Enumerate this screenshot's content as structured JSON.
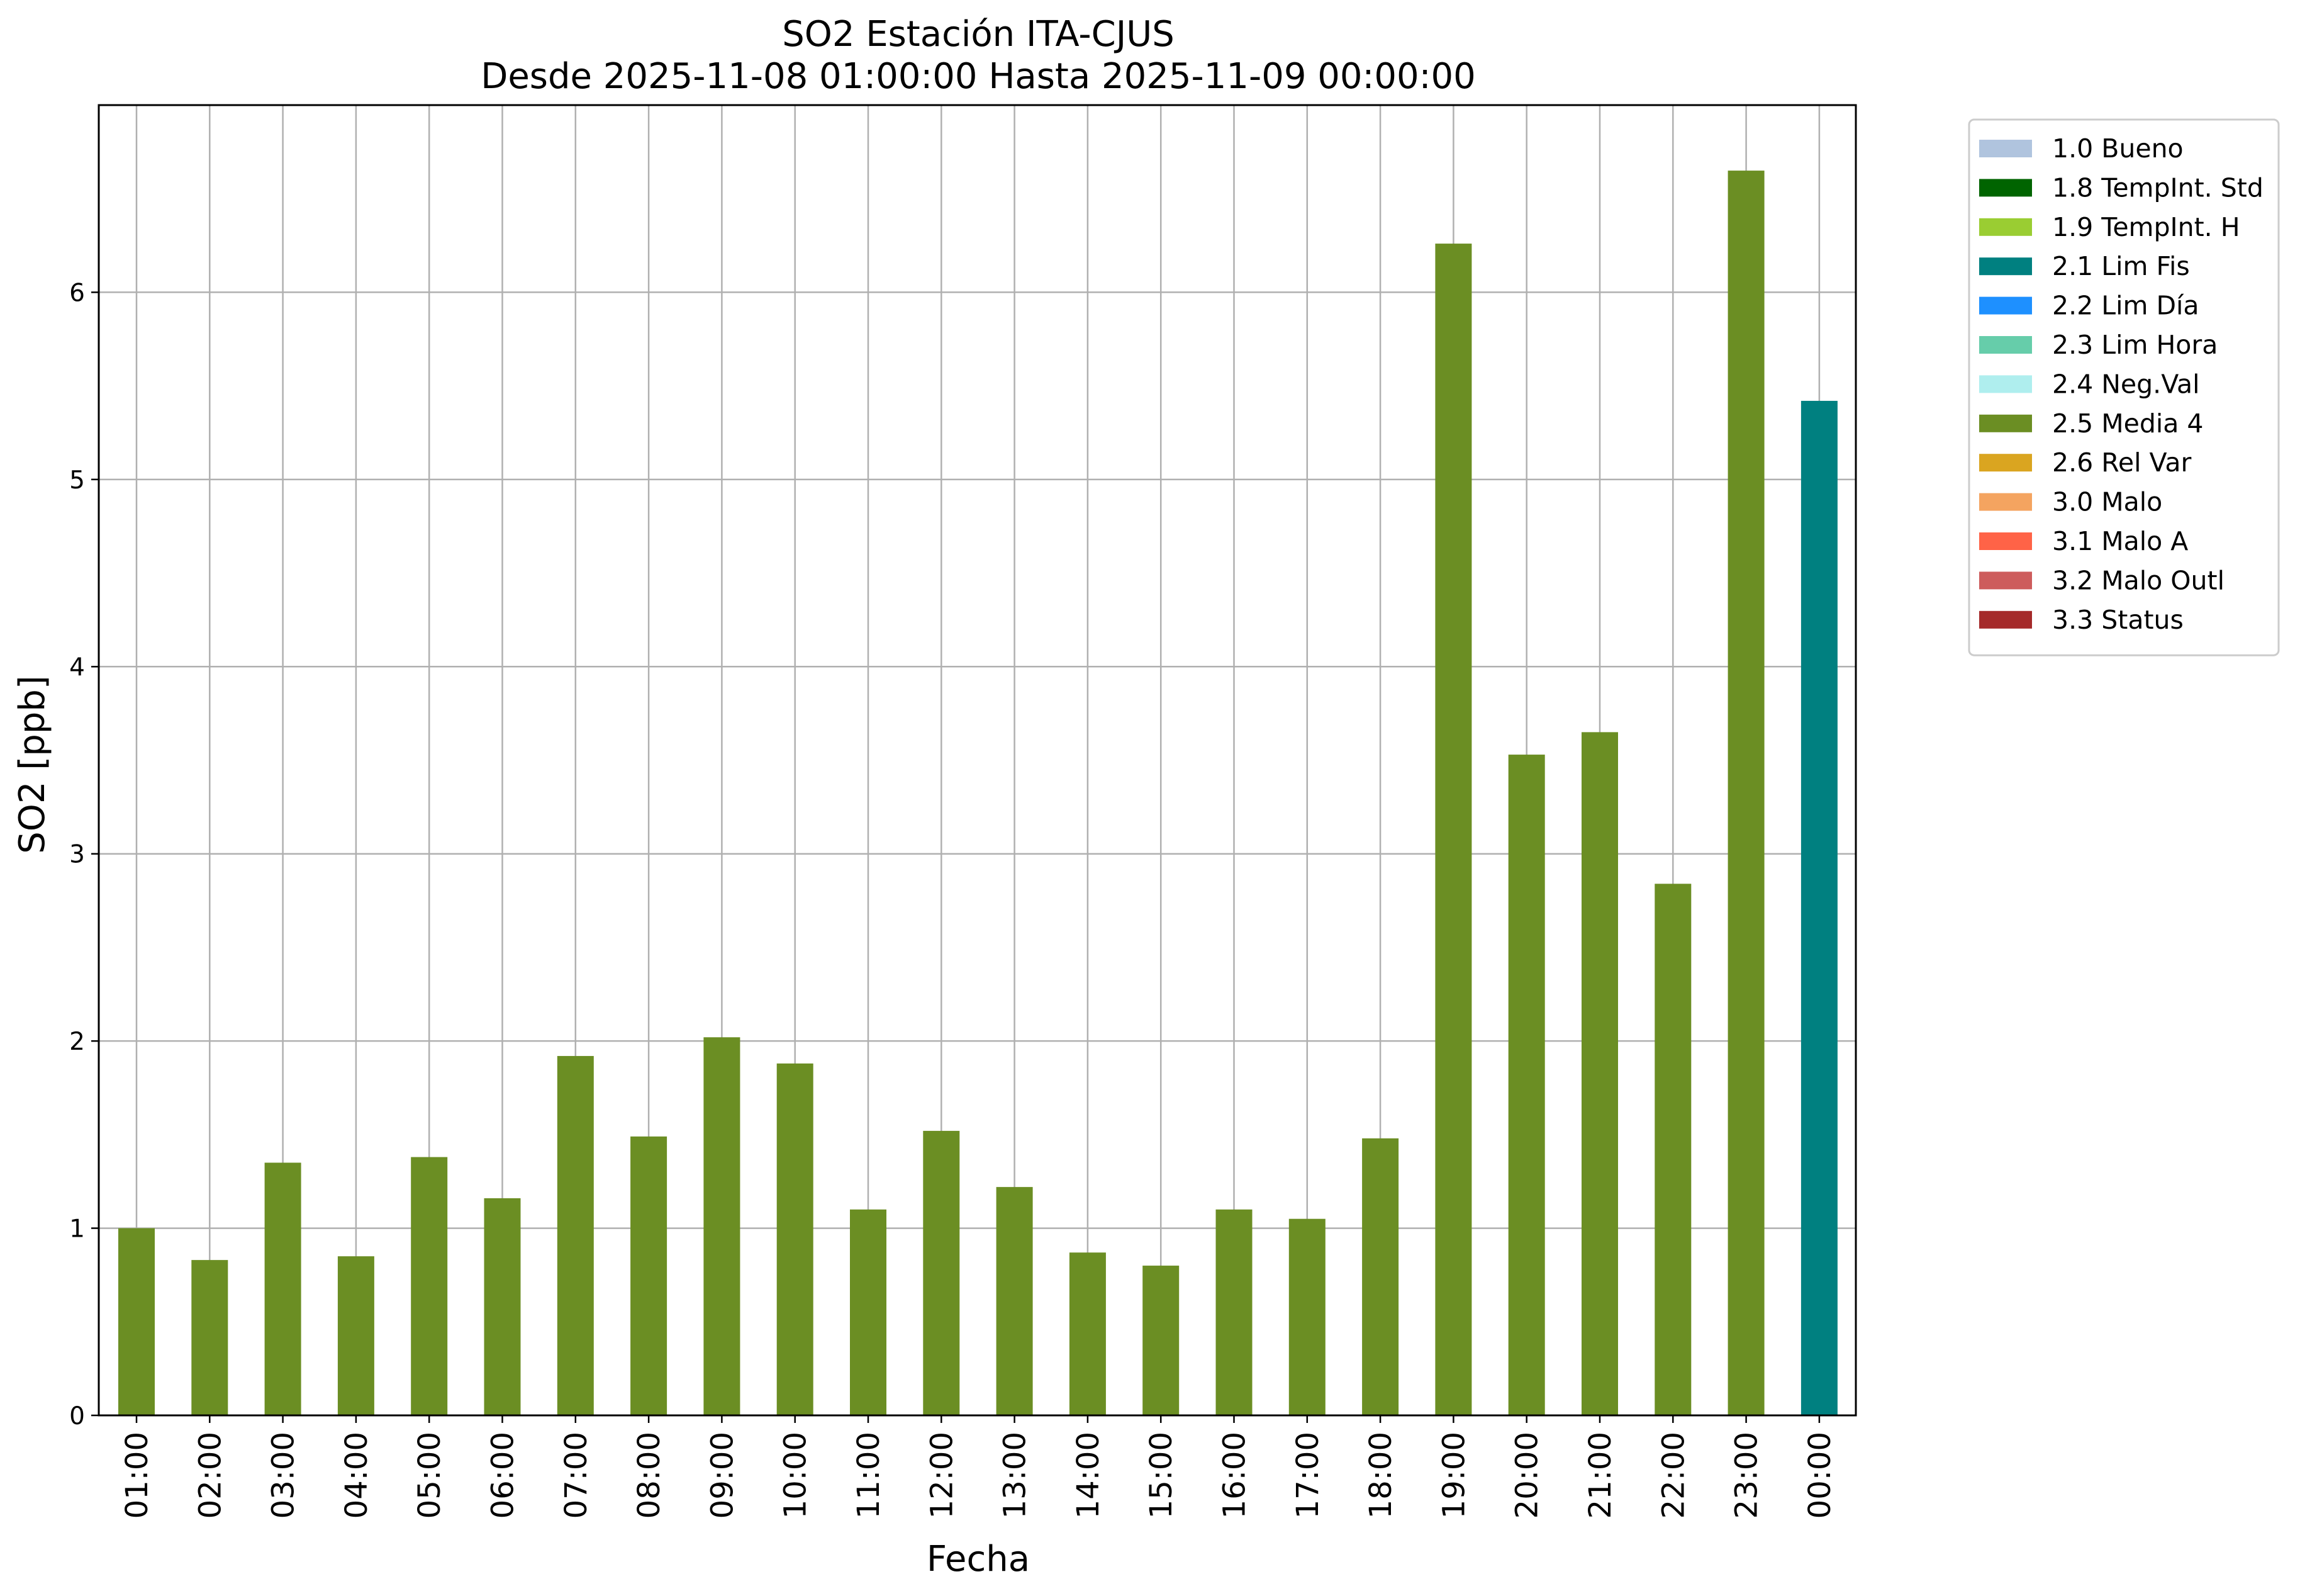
{
  "chart_data": {
    "type": "bar",
    "title": "SO2 Estación ITA-CJUS",
    "subtitle": "Desde 2025-11-08 01:00:00 Hasta 2025-11-09 00:00:00",
    "xlabel": "Fecha",
    "ylabel": "SO2 [ppb]",
    "ylim": [
      0,
      7
    ],
    "yticks": [
      "0",
      "1",
      "2",
      "3",
      "4",
      "5",
      "6"
    ],
    "grid": true,
    "legend_position": "outside-top-right",
    "categories": [
      "01:00",
      "02:00",
      "03:00",
      "04:00",
      "05:00",
      "06:00",
      "07:00",
      "08:00",
      "09:00",
      "10:00",
      "11:00",
      "12:00",
      "13:00",
      "14:00",
      "15:00",
      "16:00",
      "17:00",
      "18:00",
      "19:00",
      "20:00",
      "21:00",
      "22:00",
      "23:00",
      "00:00"
    ],
    "values": [
      1.0,
      0.83,
      1.35,
      0.85,
      1.38,
      1.16,
      1.92,
      1.49,
      2.02,
      1.88,
      1.1,
      1.52,
      1.22,
      0.87,
      0.8,
      1.1,
      1.05,
      1.48,
      6.26,
      3.53,
      3.65,
      2.84,
      6.65,
      5.42
    ],
    "flags": [
      "2.5 Media 4",
      "2.5 Media 4",
      "2.5 Media 4",
      "2.5 Media 4",
      "2.5 Media 4",
      "2.5 Media 4",
      "2.5 Media 4",
      "2.5 Media 4",
      "2.5 Media 4",
      "2.5 Media 4",
      "2.5 Media 4",
      "2.5 Media 4",
      "2.5 Media 4",
      "2.5 Media 4",
      "2.5 Media 4",
      "2.5 Media 4",
      "2.5 Media 4",
      "2.5 Media 4",
      "2.5 Media 4",
      "2.5 Media 4",
      "2.5 Media 4",
      "2.5 Media 4",
      "2.5 Media 4",
      "2.1 Lim Fis"
    ],
    "legend": [
      {
        "label": "1.0 Bueno",
        "color": "#b0c4de"
      },
      {
        "label": "1.8 TempInt. Std",
        "color": "#006400"
      },
      {
        "label": "1.9 TempInt. H",
        "color": "#9acd32"
      },
      {
        "label": "2.1 Lim Fis",
        "color": "#008080"
      },
      {
        "label": "2.2 Lim Día",
        "color": "#1e90ff"
      },
      {
        "label": "2.3 Lim Hora",
        "color": "#66cdaa"
      },
      {
        "label": "2.4 Neg.Val",
        "color": "#afeeee"
      },
      {
        "label": "2.5 Media 4",
        "color": "#6b8e23"
      },
      {
        "label": "2.6 Rel Var",
        "color": "#daa520"
      },
      {
        "label": "3.0 Malo",
        "color": "#f4a460"
      },
      {
        "label": "3.1 Malo A",
        "color": "#ff6347"
      },
      {
        "label": "3.2 Malo Outl",
        "color": "#cd5c5c"
      },
      {
        "label": "3.3 Status",
        "color": "#a52a2a"
      }
    ]
  }
}
